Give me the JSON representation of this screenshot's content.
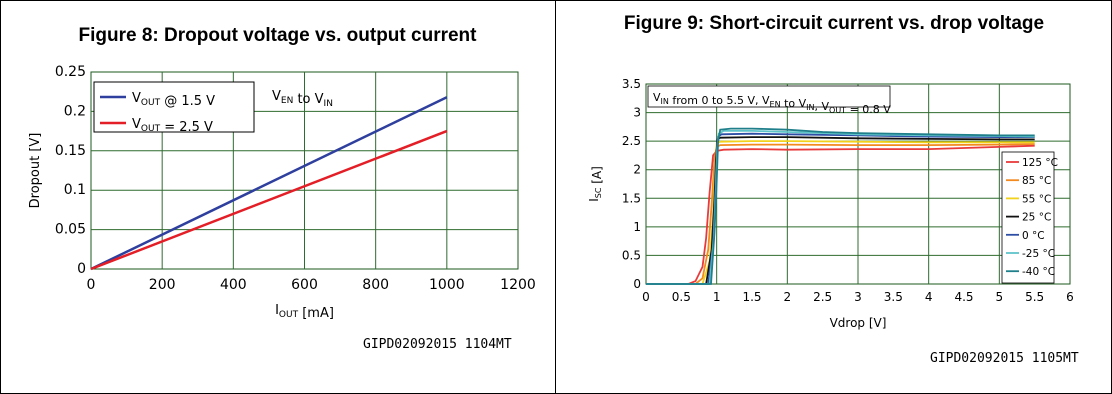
{
  "figures": [
    {
      "title": "Figure 8: Dropout voltage vs. output current",
      "code": "GIPD02092015 1104MT"
    },
    {
      "title": "Figure 9: Short-circuit current vs. drop voltage",
      "code": "GIPD02092015 1105MT"
    }
  ],
  "chart_data": [
    {
      "type": "line",
      "title": "Figure 8: Dropout voltage vs. output current",
      "xlabel": "I_OUT [mA]",
      "ylabel": "Dropout [V]",
      "xlim": [
        0,
        1200
      ],
      "ylim": [
        0,
        0.25
      ],
      "x_ticks": [
        "0",
        "200",
        "400",
        "600",
        "800",
        "1000",
        "1200"
      ],
      "y_ticks": [
        "0",
        "0.05",
        "0.1",
        "0.15",
        "0.2",
        "0.25"
      ],
      "grid": true,
      "legend_position": "top-left",
      "annotation": "V_EN to V_IN",
      "series": [
        {
          "name": "V_OUT @ 1.5 V",
          "color": "#2e3f9e",
          "x": [
            0,
            1000
          ],
          "y": [
            0,
            0.218
          ]
        },
        {
          "name": "V_OUT = 2.5 V",
          "color": "#e41e26",
          "x": [
            0,
            1000
          ],
          "y": [
            0,
            0.175
          ]
        }
      ]
    },
    {
      "type": "line",
      "title": "Figure 9: Short-circuit current vs. drop voltage",
      "xlabel": "Vdrop [V]",
      "ylabel": "I_SC [A]",
      "xlim": [
        0,
        6
      ],
      "ylim": [
        0,
        3.5
      ],
      "x_ticks": [
        "0",
        "0.5",
        "1",
        "1.5",
        "2",
        "2.5",
        "3",
        "3.5",
        "4",
        "4.5",
        "5",
        "5.5",
        "6"
      ],
      "y_ticks": [
        "0",
        "0.5",
        "1",
        "1.5",
        "2",
        "2.5",
        "3",
        "3.5"
      ],
      "grid": true,
      "legend_position": "right",
      "annotation": "V_IN from 0 to 5.5 V, V_EN to V_IN, V_OUT = 0.8 V",
      "series": [
        {
          "name": "125 °C",
          "color": "#e83a3a",
          "x": [
            0,
            0.6,
            0.7,
            0.8,
            0.85,
            0.9,
            0.95,
            1.0,
            1.1,
            1.5,
            2,
            3,
            4,
            5,
            5.5
          ],
          "y": [
            0,
            0,
            0.05,
            0.3,
            0.8,
            1.6,
            2.25,
            2.33,
            2.35,
            2.36,
            2.35,
            2.36,
            2.36,
            2.4,
            2.42
          ]
        },
        {
          "name": "85 °C",
          "color": "#f28a20",
          "x": [
            0,
            0.7,
            0.8,
            0.88,
            0.93,
            0.97,
            1.0,
            1.05,
            1.5,
            2,
            3,
            4,
            5,
            5.5
          ],
          "y": [
            0,
            0,
            0.1,
            0.6,
            1.4,
            2.2,
            2.4,
            2.43,
            2.44,
            2.44,
            2.43,
            2.43,
            2.44,
            2.45
          ]
        },
        {
          "name": "55 °C",
          "color": "#f2d21b",
          "x": [
            0,
            0.8,
            0.9,
            0.95,
            0.98,
            1.0,
            1.05,
            1.5,
            2,
            3,
            4,
            5,
            5.5
          ],
          "y": [
            0,
            0,
            0.4,
            1.2,
            2.1,
            2.46,
            2.49,
            2.5,
            2.5,
            2.49,
            2.48,
            2.48,
            2.48
          ]
        },
        {
          "name": "25 °C",
          "color": "#111111",
          "x": [
            0,
            0.85,
            0.93,
            0.97,
            0.99,
            1.01,
            1.05,
            1.5,
            2,
            3,
            4,
            5,
            5.5
          ],
          "y": [
            0,
            0,
            0.6,
            1.5,
            2.2,
            2.53,
            2.56,
            2.57,
            2.57,
            2.55,
            2.54,
            2.53,
            2.53
          ]
        },
        {
          "name": "0 °C",
          "color": "#2e4ea6",
          "x": [
            0,
            0.88,
            0.95,
            0.98,
            1.0,
            1.02,
            1.07,
            1.5,
            2,
            3,
            4,
            5,
            5.5
          ],
          "y": [
            0,
            0,
            0.7,
            1.6,
            2.3,
            2.58,
            2.62,
            2.63,
            2.62,
            2.6,
            2.58,
            2.57,
            2.57
          ]
        },
        {
          "name": "-25 °C",
          "color": "#5ec4c9",
          "x": [
            0,
            0.9,
            0.96,
            0.99,
            1.01,
            1.03,
            1.1,
            1.5,
            2,
            2.5,
            3,
            4,
            5,
            5.5
          ],
          "y": [
            0,
            0,
            0.8,
            1.7,
            2.4,
            2.63,
            2.68,
            2.68,
            2.66,
            2.64,
            2.62,
            2.6,
            2.59,
            2.58
          ]
        },
        {
          "name": "-40 °C",
          "color": "#1f7f8a",
          "x": [
            0,
            0.92,
            0.97,
            1.0,
            1.02,
            1.05,
            1.2,
            1.5,
            2,
            2.5,
            3,
            4,
            5,
            5.5
          ],
          "y": [
            0,
            0,
            0.9,
            1.8,
            2.5,
            2.7,
            2.72,
            2.72,
            2.7,
            2.66,
            2.64,
            2.62,
            2.6,
            2.6
          ]
        }
      ]
    }
  ]
}
